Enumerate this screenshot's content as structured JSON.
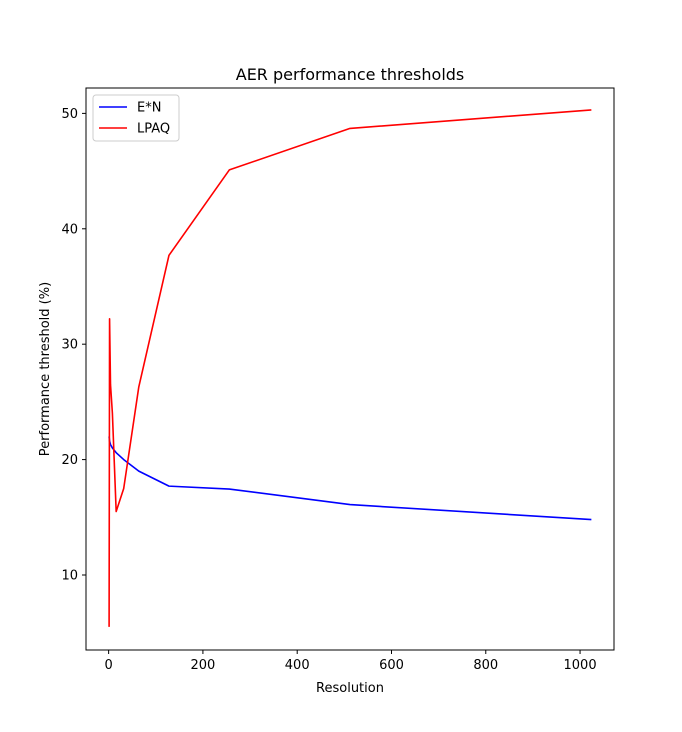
{
  "chart_data": {
    "type": "line",
    "title": "AER performance thresholds",
    "xlabel": "Resolution",
    "ylabel": "Performance threshold (%)",
    "xlim": [
      -48,
      1072
    ],
    "ylim": [
      3.5,
      52.2
    ],
    "xticks": [
      0,
      200,
      400,
      600,
      800,
      1000
    ],
    "yticks": [
      10,
      20,
      30,
      40,
      50
    ],
    "legend_position": "top-left",
    "series": [
      {
        "name": "E*N",
        "color": "#0000ff",
        "points": [
          [
            1,
            22
          ],
          [
            2,
            21.6
          ],
          [
            4,
            21.3
          ],
          [
            8,
            21.0
          ],
          [
            16,
            20.6
          ],
          [
            32,
            20.0
          ],
          [
            64,
            19.0
          ],
          [
            128,
            17.7
          ],
          [
            256,
            17.45
          ],
          [
            512,
            16.1
          ],
          [
            1024,
            14.8
          ]
        ]
      },
      {
        "name": "LPAQ",
        "color": "#ff0000",
        "points": [
          [
            1,
            5.5
          ],
          [
            2,
            32.2
          ],
          [
            4,
            26.5
          ],
          [
            8,
            24.0
          ],
          [
            16,
            15.5
          ],
          [
            32,
            17.5
          ],
          [
            64,
            26.3
          ],
          [
            128,
            37.7
          ],
          [
            256,
            45.1
          ],
          [
            512,
            48.7
          ],
          [
            1024,
            50.3
          ]
        ]
      }
    ]
  }
}
